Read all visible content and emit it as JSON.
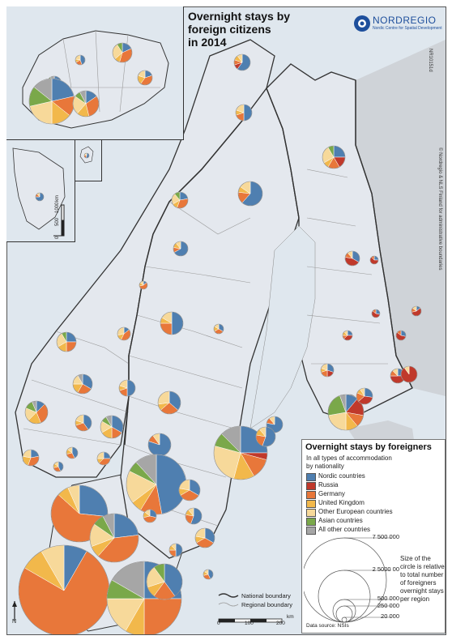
{
  "title_lines": [
    "Overnight stays by",
    "foreign citizens",
    "in 2014"
  ],
  "logo": {
    "name": "NORDREGIO",
    "subtitle": "Nordic Centre for Spatial Development"
  },
  "map_code": "NR10151d",
  "copyright": "© Nordregio & NLS Finland for administrative boundaries",
  "legend": {
    "title": "Overnight stays by foreigners",
    "subtitle_1": "In all types of accommodation",
    "subtitle_2": "by nationality",
    "categories": [
      {
        "label": "Nordic countries",
        "color": "#4f7fb0"
      },
      {
        "label": "Russia",
        "color": "#c0392b"
      },
      {
        "label": "Germany",
        "color": "#e8773a"
      },
      {
        "label": "United Kingdom",
        "color": "#f2b84b"
      },
      {
        "label": "Other European countries",
        "color": "#f7d99a"
      },
      {
        "label": "Asian countries",
        "color": "#7aa84a"
      },
      {
        "label": "All other countries",
        "color": "#a6a6a6"
      }
    ],
    "size_labels": [
      "7 500 000",
      "2 5000 00",
      "500 000",
      "250 000",
      "20 000"
    ],
    "size_note": "Size of the circle is relative to total number of foreigners overnight stays per region",
    "data_source": "Data source: NSIs"
  },
  "boundaries": {
    "national": "National boundary",
    "regional": "Regional boundary"
  },
  "scalebar": {
    "ticks": [
      "0",
      "100",
      "200"
    ],
    "unit": "km"
  },
  "inset_scale": {
    "ticks": [
      "0",
      "500",
      "1000"
    ],
    "unit": "km"
  },
  "north_label": "N",
  "colors": {
    "land": "#e4e8ee",
    "land_east": "#cfd3d8",
    "sea": "#dfe7ee",
    "national_boundary": "#333333",
    "regional_boundary": "#9a9a9a"
  }
}
